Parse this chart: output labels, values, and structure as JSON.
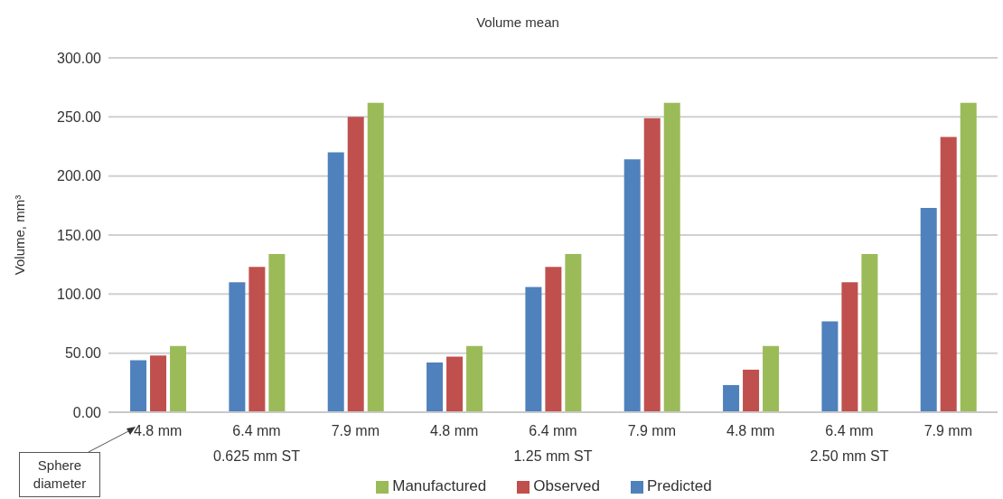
{
  "chart_data": {
    "type": "bar",
    "title": "Volume mean",
    "ylabel": "Volume, mm³",
    "categories": [
      "4.8 mm",
      "6.4 mm",
      "7.9 mm",
      "4.8 mm",
      "6.4 mm",
      "7.9 mm",
      "4.8 mm",
      "6.4 mm",
      "7.9 mm"
    ],
    "series": [
      {
        "name": "Predicted",
        "color": "#4f81bd",
        "values": [
          44,
          110,
          220,
          42,
          106,
          214,
          23,
          77,
          173
        ]
      },
      {
        "name": "Observed",
        "color": "#c0504d",
        "values": [
          48,
          123,
          250,
          47,
          123,
          249,
          36,
          110,
          233
        ]
      },
      {
        "name": "Manufactured",
        "color": "#9bbb59",
        "values": [
          56,
          134,
          262,
          56,
          134,
          262,
          56,
          134,
          262
        ]
      }
    ],
    "ylim": [
      0,
      300
    ],
    "yticks": [
      {
        "value": 0,
        "label": "0.00"
      },
      {
        "value": 50,
        "label": "50.00"
      },
      {
        "value": 100,
        "label": "100.00"
      },
      {
        "value": 150,
        "label": "150.00"
      },
      {
        "value": 200,
        "label": "200.00"
      },
      {
        "value": 250,
        "label": "250.00"
      },
      {
        "value": 300,
        "label": "300.00"
      }
    ],
    "grid": "y",
    "legend": "bottom",
    "annotations": [
      "0.625 mm ST",
      "1.25 mm ST",
      "2.50 mm ST",
      "Sphere diameter"
    ]
  }
}
